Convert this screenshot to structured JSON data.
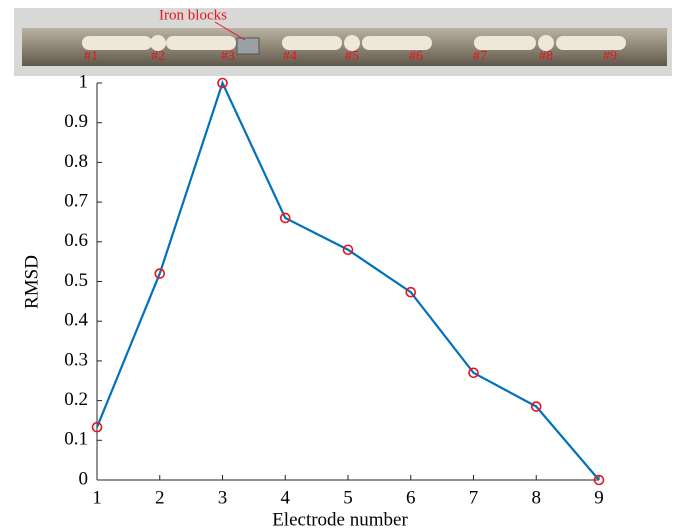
{
  "chart_data": {
    "type": "line",
    "x_label": "Electrode number",
    "y_label": "RMSD",
    "x": [
      1,
      2,
      3,
      4,
      5,
      6,
      7,
      8,
      9
    ],
    "series": [
      {
        "color": "#0072bd",
        "marker_color": "#e8141c",
        "values": [
          0.133,
          0.52,
          1.0,
          0.66,
          0.58,
          0.473,
          0.27,
          0.185,
          0.0
        ]
      }
    ],
    "xlim": [
      1,
      9
    ],
    "xticks": [
      1,
      2,
      3,
      4,
      5,
      6,
      7,
      8,
      9
    ],
    "ylim": [
      0,
      1
    ],
    "yticks": [
      0,
      0.1,
      0.2,
      0.3,
      0.4,
      0.5,
      0.6,
      0.7,
      0.8,
      0.9,
      1
    ],
    "photo_annotation": "Iron blocks",
    "photo_labels": [
      "#1",
      "#2",
      "#3",
      "#4",
      "#5",
      "#6",
      "#7",
      "#8",
      "#9"
    ]
  }
}
